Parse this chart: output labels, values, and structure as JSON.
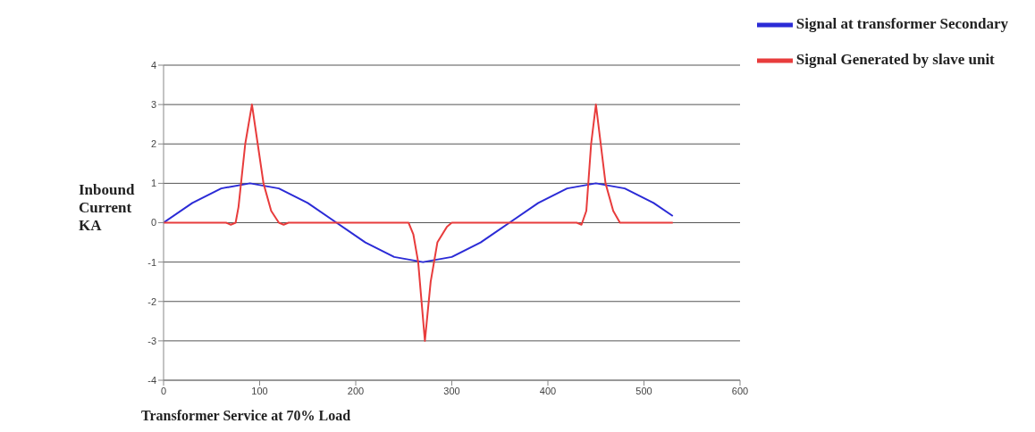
{
  "chart_data": {
    "type": "line",
    "xlabel": "Transformer Service at 70% Load",
    "ylabel": "Inbound Current KA",
    "xlim": [
      0,
      600
    ],
    "xticks": [
      0,
      100,
      200,
      300,
      400,
      500,
      600
    ],
    "ylim": [
      -4,
      4
    ],
    "yticks": [
      -4,
      -3,
      -2,
      -1,
      0,
      1,
      2,
      3,
      4
    ],
    "grid": "y",
    "legend": "top right",
    "marker": "none",
    "line_style": "solid",
    "series": [
      {
        "name": "Signal at transformer Secondary",
        "color": "#2b2bd6",
        "x": [
          0,
          30,
          60,
          90,
          120,
          150,
          180,
          210,
          240,
          270,
          300,
          330,
          360,
          390,
          420,
          450,
          480,
          510,
          530
        ],
        "values": [
          0,
          0.5,
          0.87,
          1,
          0.87,
          0.5,
          0,
          -0.5,
          -0.87,
          -1,
          -0.87,
          -0.5,
          0,
          0.5,
          0.87,
          1,
          0.87,
          0.5,
          0.17
        ]
      },
      {
        "name": "Signal Generated by slave unit",
        "color": "#e83c3c",
        "x": [
          0,
          65,
          70,
          75,
          78,
          85,
          92,
          98,
          104,
          112,
          120,
          125,
          130,
          255,
          260,
          265,
          272,
          278,
          285,
          295,
          300,
          430,
          435,
          440,
          445,
          450,
          455,
          460,
          468,
          475,
          530
        ],
        "values": [
          0,
          0,
          -0.05,
          0,
          0.4,
          2,
          3,
          2,
          1,
          0.3,
          0,
          -0.05,
          0,
          0,
          -0.3,
          -1,
          -3,
          -1.5,
          -0.5,
          -0.1,
          0,
          0,
          -0.05,
          0.3,
          2,
          3,
          2,
          1,
          0.3,
          0,
          0
        ]
      }
    ]
  }
}
